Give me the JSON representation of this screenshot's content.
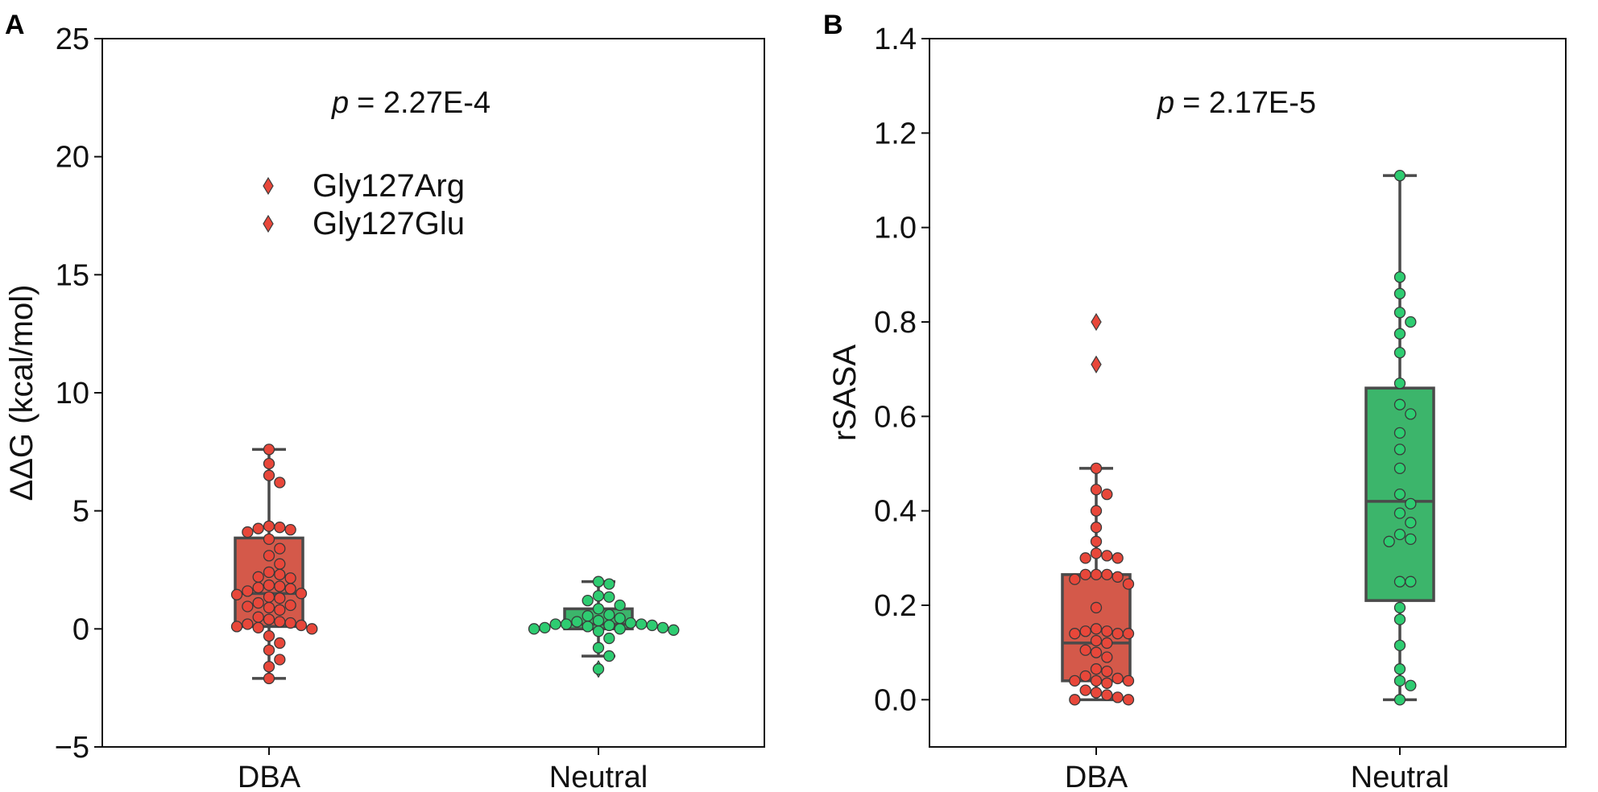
{
  "colors": {
    "dba_box": "#d4594a",
    "dba_point": "#e8473a",
    "neutral_box": "#3cb56b",
    "neutral_point": "#2ecc71",
    "box_edge": "#4a4a4a",
    "point_edge": "#3a3a3a"
  },
  "chart_data": [
    {
      "type": "box+swarm",
      "panel_label": "A",
      "pvalue_prefix": "p",
      "pvalue_text": "= 2.27E-4",
      "ylabel": "ΔΔG (kcal/mol)",
      "ylim": [
        -5,
        25
      ],
      "yticks": [
        -5,
        0,
        5,
        10,
        15,
        20,
        25
      ],
      "ytick_labels": [
        "−5",
        "0",
        "5",
        "10",
        "15",
        "20",
        "25"
      ],
      "categories": [
        "DBA",
        "Neutral"
      ],
      "legend": [
        {
          "label": "Gly127Arg",
          "marker": "diamond"
        },
        {
          "label": "Gly127Glu",
          "marker": "diamond"
        }
      ],
      "boxes": [
        {
          "name": "DBA",
          "q1": 0.1,
          "median": 1.5,
          "q3": 3.85,
          "whisker_low": -2.1,
          "whisker_high": 7.6,
          "outliers": []
        },
        {
          "name": "Neutral",
          "q1": 0.0,
          "median": 0.2,
          "q3": 0.85,
          "whisker_low": -1.15,
          "whisker_high": 2.0,
          "outliers": [
            -1.7
          ]
        }
      ],
      "points": [
        {
          "group": "DBA",
          "values": [
            7.6,
            7.0,
            6.5,
            6.2,
            4.35,
            4.3,
            4.25,
            4.2,
            4.1,
            3.8,
            3.4,
            3.1,
            2.75,
            2.4,
            2.3,
            2.2,
            2.15,
            1.85,
            1.8,
            1.75,
            1.7,
            1.6,
            1.5,
            1.45,
            1.35,
            1.3,
            1.1,
            1.0,
            0.95,
            0.9,
            0.8,
            0.5,
            0.4,
            0.3,
            0.25,
            0.2,
            0.15,
            0.1,
            0.05,
            0.0,
            -0.3,
            -0.6,
            -0.9,
            -1.3,
            -1.6,
            -2.1
          ]
        },
        {
          "group": "Neutral",
          "values": [
            2.0,
            1.9,
            1.4,
            1.35,
            1.2,
            1.0,
            0.85,
            0.6,
            0.55,
            0.45,
            0.35,
            0.3,
            0.25,
            0.2,
            0.2,
            0.2,
            0.15,
            0.15,
            0.1,
            0.05,
            0.05,
            0.0,
            0.0,
            -0.05,
            -0.1,
            -0.4,
            -0.8,
            -1.15,
            -1.7
          ]
        }
      ]
    },
    {
      "type": "box+swarm",
      "panel_label": "B",
      "pvalue_prefix": "p",
      "pvalue_text": "= 2.17E-5",
      "ylabel": "rSASA",
      "ylim": [
        -0.1,
        1.4
      ],
      "yticks": [
        0.0,
        0.2,
        0.4,
        0.6,
        0.8,
        1.0,
        1.2,
        1.4
      ],
      "ytick_labels": [
        "0.0",
        "0.2",
        "0.4",
        "0.6",
        "0.8",
        "1.0",
        "1.2",
        "1.4"
      ],
      "categories": [
        "DBA",
        "Neutral"
      ],
      "boxes": [
        {
          "name": "DBA",
          "q1": 0.04,
          "median": 0.12,
          "q3": 0.265,
          "whisker_low": 0.0,
          "whisker_high": 0.49,
          "outliers": [
            0.8,
            0.71
          ]
        },
        {
          "name": "Neutral",
          "q1": 0.21,
          "median": 0.42,
          "q3": 0.66,
          "whisker_low": 0.0,
          "whisker_high": 1.11,
          "outliers": []
        }
      ],
      "points": [
        {
          "group": "DBA",
          "values": [
            0.49,
            0.445,
            0.435,
            0.4,
            0.365,
            0.335,
            0.31,
            0.305,
            0.3,
            0.3,
            0.265,
            0.265,
            0.265,
            0.26,
            0.255,
            0.245,
            0.195,
            0.15,
            0.145,
            0.145,
            0.14,
            0.14,
            0.14,
            0.125,
            0.12,
            0.105,
            0.1,
            0.09,
            0.065,
            0.06,
            0.05,
            0.045,
            0.04,
            0.04,
            0.04,
            0.035,
            0.02,
            0.015,
            0.01,
            0.005,
            0.0,
            0.0
          ]
        },
        {
          "group": "Neutral",
          "values": [
            1.11,
            0.895,
            0.86,
            0.82,
            0.8,
            0.775,
            0.735,
            0.67,
            0.625,
            0.605,
            0.565,
            0.53,
            0.49,
            0.435,
            0.415,
            0.395,
            0.375,
            0.35,
            0.34,
            0.335,
            0.25,
            0.25,
            0.195,
            0.17,
            0.115,
            0.065,
            0.04,
            0.03,
            0.0
          ]
        }
      ]
    }
  ]
}
